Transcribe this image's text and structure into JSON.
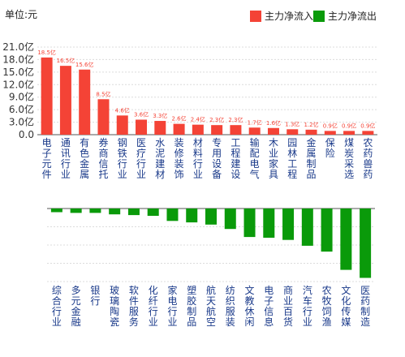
{
  "header": {
    "unit_label": "单位:元"
  },
  "legend": [
    {
      "name": "主力净流入",
      "color": "#f44336"
    },
    {
      "name": "主力净流出",
      "color": "#0a9a0a"
    }
  ],
  "chart_data": [
    {
      "type": "bar",
      "series_name": "主力净流入",
      "color": "#f44336",
      "yticks": [
        "0.0",
        "3.0亿",
        "6.0亿",
        "9.0亿",
        "12.0亿",
        "15.0亿",
        "18.0亿",
        "21.0亿"
      ],
      "ylim": [
        0,
        21
      ],
      "categories": [
        "电子元件",
        "通讯行业",
        "有色金属",
        "券商信托",
        "钢铁行业",
        "医疗行业",
        "水泥建材",
        "装修装饰",
        "材料行业",
        "专用设备",
        "工程建设",
        "输配电气",
        "木业家具",
        "园林工程",
        "金属制品",
        "保险",
        "煤炭采选",
        "农药兽药"
      ],
      "values": [
        18.5,
        16.5,
        15.6,
        8.5,
        4.6,
        3.6,
        3.3,
        2.6,
        2.4,
        2.3,
        2.3,
        1.7,
        1.6,
        1.3,
        1.2,
        0.9,
        0.9,
        0.9
      ],
      "data_labels": [
        "18.5亿",
        "16.5亿",
        "15.6亿",
        "8.5亿",
        "4.6亿",
        "3.6亿",
        "3.3亿",
        "2.6亿",
        "2.4亿",
        "2.3亿",
        "2.3亿",
        "1.7亿",
        "1.6亿",
        "1.3亿",
        "1.2亿",
        "0.9亿",
        "0.9亿",
        "0.9亿"
      ]
    },
    {
      "type": "bar",
      "series_name": "主力净流出",
      "color": "#0a9a0a",
      "categories": [
        "综合行业",
        "多元金融",
        "银行",
        "玻璃陶瓷",
        "软件服务",
        "化纤行业",
        "家电行业",
        "塑胶制品",
        "航天航空",
        "纺织服装",
        "文教休闲",
        "电子信息",
        "商业百货",
        "汽车行业",
        "农牧饲渔",
        "文化传媒",
        "医药制造"
      ],
      "values": [
        -0.5,
        -0.6,
        -0.6,
        -0.8,
        -0.9,
        -1.0,
        -1.7,
        -1.9,
        -2.2,
        -2.8,
        -3.9,
        -4.0,
        -4.3,
        -5.1,
        -5.9,
        -8.4,
        -9.5
      ]
    }
  ]
}
